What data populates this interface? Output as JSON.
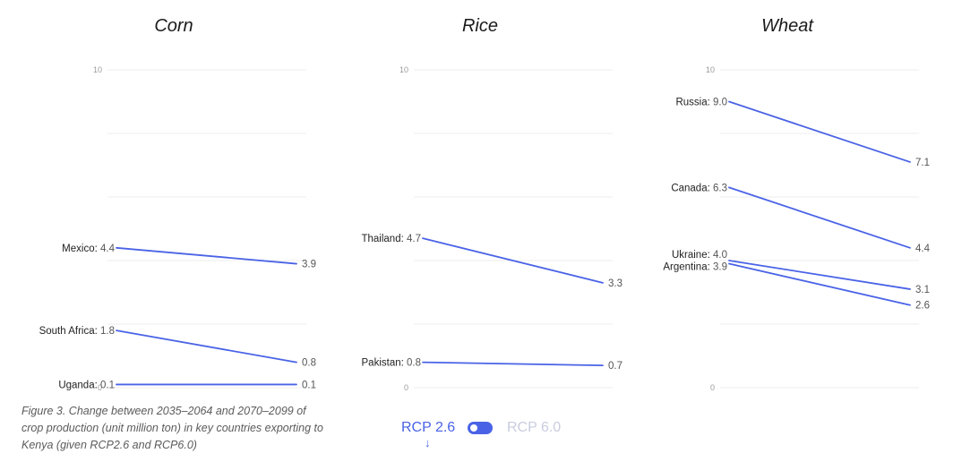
{
  "chart_data": [
    {
      "type": "line",
      "chart_style": "slope",
      "title": "Corn",
      "x": [
        "2035–2064",
        "2070–2099"
      ],
      "ylim": [
        0,
        10
      ],
      "yticks": [
        {
          "value": 10,
          "label": "10"
        },
        {
          "value": 0,
          "label": "0"
        }
      ],
      "series": [
        {
          "name": "Mexico",
          "values": [
            4.4,
            3.9
          ],
          "start_label": "Mexico:",
          "start_value": "4.4",
          "end_value": "3.9"
        },
        {
          "name": "South Africa",
          "values": [
            1.8,
            0.8
          ],
          "start_label": "South Africa:",
          "start_value": "1.8",
          "end_value": "0.8"
        },
        {
          "name": "Uganda",
          "values": [
            0.1,
            0.1
          ],
          "start_label": "Uganda:",
          "start_value": "0.1",
          "end_value": "0.1"
        }
      ]
    },
    {
      "type": "line",
      "chart_style": "slope",
      "title": "Rice",
      "x": [
        "2035–2064",
        "2070–2099"
      ],
      "ylim": [
        0,
        10
      ],
      "yticks": [
        {
          "value": 10,
          "label": "10"
        },
        {
          "value": 0,
          "label": "0"
        }
      ],
      "series": [
        {
          "name": "Thailand",
          "values": [
            4.7,
            3.3
          ],
          "start_label": "Thailand:",
          "start_value": "4.7",
          "end_value": "3.3"
        },
        {
          "name": "Pakistan",
          "values": [
            0.8,
            0.7
          ],
          "start_label": "Pakistan:",
          "start_value": "0.8",
          "end_value": "0.7"
        }
      ]
    },
    {
      "type": "line",
      "chart_style": "slope",
      "title": "Wheat",
      "x": [
        "2035–2064",
        "2070–2099"
      ],
      "ylim": [
        0,
        10
      ],
      "yticks": [
        {
          "value": 10,
          "label": "10"
        },
        {
          "value": 0,
          "label": "0"
        }
      ],
      "series": [
        {
          "name": "Russia",
          "values": [
            9.0,
            7.1
          ],
          "start_label": "Russia:",
          "start_value": "9.0",
          "end_value": "7.1"
        },
        {
          "name": "Canada",
          "values": [
            6.3,
            4.4
          ],
          "start_label": "Canada:",
          "start_value": "6.3",
          "end_value": "4.4"
        },
        {
          "name": "Ukraine",
          "values": [
            4.0,
            3.1
          ],
          "start_label": "Ukraine:",
          "start_value": "4.0",
          "end_value": "3.1"
        },
        {
          "name": "Argentina",
          "values": [
            3.9,
            2.6
          ],
          "start_label": "Argentina:",
          "start_value": "3.9",
          "end_value": "2.6"
        }
      ]
    }
  ],
  "caption": "Figure 3. Change between 2035–2064 and 2070–2099 of crop production (unit million ton) in key countries exporting to Kenya (given RCP2.6 and RCP6.0)",
  "toggle": {
    "option_active": "RCP 2.6",
    "option_inactive": "RCP 6.0",
    "arrow": "↓"
  },
  "colors": {
    "line": "#4a63e6",
    "grid": "#ececec",
    "label": "#222222",
    "value": "#555555",
    "tick": "#9a9a9a"
  }
}
